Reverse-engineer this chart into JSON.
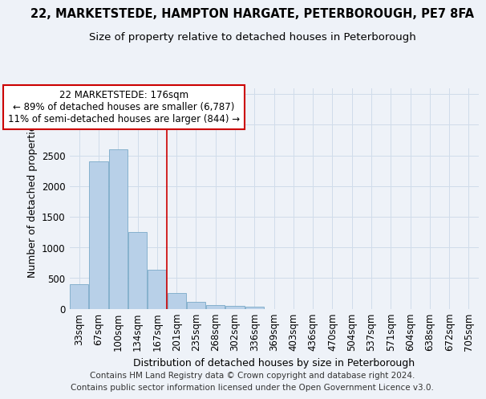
{
  "title": "22, MARKETSTEDE, HAMPTON HARGATE, PETERBOROUGH, PE7 8FA",
  "subtitle": "Size of property relative to detached houses in Peterborough",
  "xlabel": "Distribution of detached houses by size in Peterborough",
  "ylabel": "Number of detached properties",
  "categories": [
    "33sqm",
    "67sqm",
    "100sqm",
    "134sqm",
    "167sqm",
    "201sqm",
    "235sqm",
    "268sqm",
    "302sqm",
    "336sqm",
    "369sqm",
    "403sqm",
    "436sqm",
    "470sqm",
    "504sqm",
    "537sqm",
    "571sqm",
    "604sqm",
    "638sqm",
    "672sqm",
    "705sqm"
  ],
  "values": [
    400,
    2400,
    2600,
    1250,
    630,
    260,
    110,
    65,
    50,
    35,
    0,
    0,
    0,
    0,
    0,
    0,
    0,
    0,
    0,
    0,
    0
  ],
  "bar_color": "#b8d0e8",
  "bar_edge_color": "#7aaac8",
  "grid_color": "#d0dcea",
  "background_color": "#eef2f8",
  "vline_color": "#cc0000",
  "vline_position": 4.5,
  "annotation_text": "22 MARKETSTEDE: 176sqm\n← 89% of detached houses are smaller (6,787)\n11% of semi-detached houses are larger (844) →",
  "annotation_box_facecolor": "#ffffff",
  "annotation_box_edgecolor": "#cc0000",
  "footer1": "Contains HM Land Registry data © Crown copyright and database right 2024.",
  "footer2": "Contains public sector information licensed under the Open Government Licence v3.0.",
  "ylim": [
    0,
    3600
  ],
  "yticks": [
    0,
    500,
    1000,
    1500,
    2000,
    2500,
    3000,
    3500
  ],
  "title_fontsize": 10.5,
  "subtitle_fontsize": 9.5,
  "label_fontsize": 9,
  "tick_fontsize": 8.5,
  "annot_fontsize": 8.5,
  "footer_fontsize": 7.5
}
